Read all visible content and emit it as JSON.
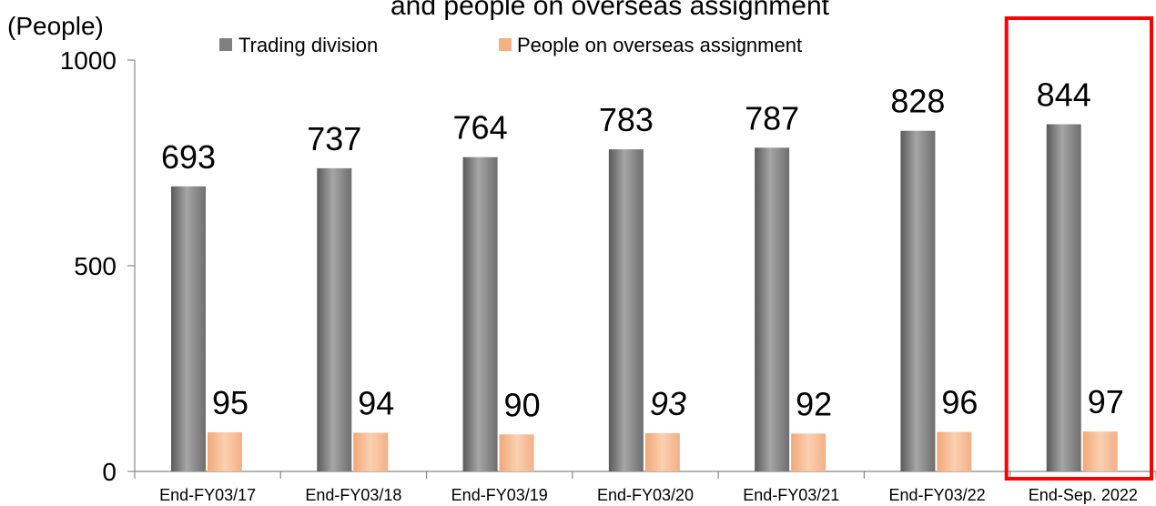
{
  "chart_data": {
    "type": "bar",
    "title": "and people on overseas assignment",
    "unit_label": "(People)",
    "categories": [
      "End-FY03/17",
      "End-FY03/18",
      "End-FY03/19",
      "End-FY03/20",
      "End-FY03/21",
      "End-FY03/22",
      "End-Sep. 2022"
    ],
    "series": [
      {
        "name": "Trading division",
        "values": [
          693,
          737,
          764,
          783,
          787,
          828,
          844
        ],
        "color": "#808080"
      },
      {
        "name": "People on overseas assignment",
        "values": [
          95,
          94,
          90,
          93,
          92,
          96,
          97
        ],
        "color": "#F4B183"
      }
    ],
    "italic_labels": [
      {
        "series": 1,
        "index": 3
      }
    ],
    "ylim": [
      0,
      1000
    ],
    "yticks": [
      0,
      500,
      1000
    ],
    "grid": false,
    "legend_position": "top",
    "highlight": {
      "category_index": 6,
      "color": "#FF0000"
    }
  }
}
